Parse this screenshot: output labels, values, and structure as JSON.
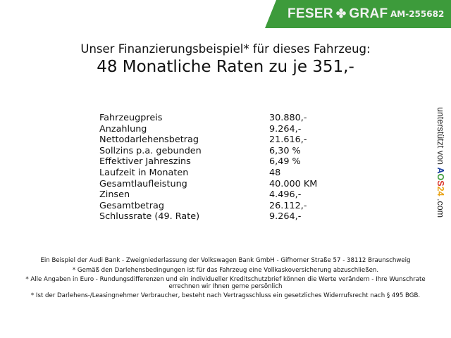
{
  "header": {
    "brand": "FESER",
    "brand2": "GRAF",
    "code": "AM-255682",
    "brand_color": "#3d9b3b"
  },
  "title": {
    "line1": "Unser Finanzierungsbeispiel* für dieses Fahrzeug:",
    "line2": "48 Monatliche Raten zu je 351,-"
  },
  "rows": [
    {
      "label": "Fahrzeugpreis",
      "value": "30.880,-"
    },
    {
      "label": "Anzahlung",
      "value": "9.264,-"
    },
    {
      "label": "Nettodarlehensbetrag",
      "value": "21.616,-"
    },
    {
      "label": "Sollzins p.a. gebunden",
      "value": "6,30 %"
    },
    {
      "label": "Effektiver Jahreszins",
      "value": "6,49 %"
    },
    {
      "label": "Laufzeit in Monaten",
      "value": "48"
    },
    {
      "label": "Gesamtlaufleistung",
      "value": "40.000 KM"
    },
    {
      "label": "Zinsen",
      "value": "4.496,-"
    },
    {
      "label": "Gesamtbetrag",
      "value": "26.112,-"
    },
    {
      "label": "Schlussrate (49. Rate)",
      "value": "9.264,-"
    }
  ],
  "side": {
    "text": "unterstützt von",
    "logo_a": "A",
    "logo_o": "O",
    "logo_s": "S",
    "logo_n": "24",
    "domain": ".com"
  },
  "footer": [
    "Ein Beispiel der Audi Bank - Zweigniederlassung der Volkswagen Bank GmbH - Gifhorner Straße 57 - 38112 Braunschweig",
    "* Gemäß den Darlehensbedingungen ist für das Fahrzeug eine Vollkaskoversicherung abzuschließen.",
    "* Alle Angaben in Euro - Rundungsdifferenzen und ein individueller Kreditschutzbrief können die Werte verändern - Ihre Wunschrate errechnen wir Ihnen gerne persönlich",
    "* Ist der Darlehens-/Leasingnehmer Verbraucher, besteht nach Vertragsschluss ein gesetzliches Widerrufsrecht nach § 495 BGB."
  ]
}
